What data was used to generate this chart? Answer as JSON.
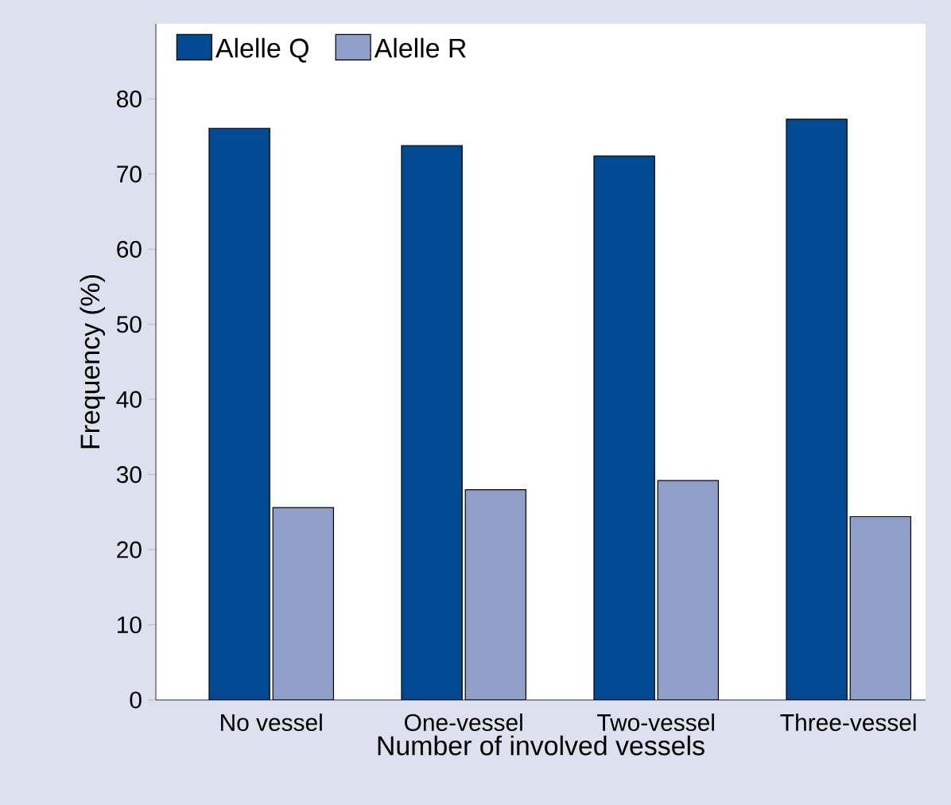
{
  "chart_data": {
    "type": "bar",
    "xlabel": "Number of involved vessels",
    "ylabel": "Frequency (%)",
    "categories": [
      "No vessel",
      "One-vessel",
      "Two-vessel",
      "Three-vessel"
    ],
    "series": [
      {
        "name": "Alelle Q",
        "color": "#004a93",
        "values": [
          76.1,
          73.8,
          72.4,
          77.3
        ]
      },
      {
        "name": "Alelle R",
        "color": "#8f9fca",
        "values": [
          25.6,
          28.0,
          29.2,
          24.4
        ]
      }
    ],
    "ylim": [
      0,
      90
    ],
    "yticks": [
      0,
      10,
      20,
      30,
      40,
      50,
      60,
      70,
      80
    ],
    "grid": false,
    "legend": "top left"
  }
}
